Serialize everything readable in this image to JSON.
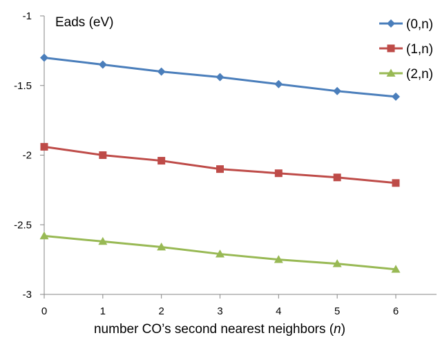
{
  "chart_data": {
    "type": "line",
    "ylabel": "Eads (eV)",
    "xlabel_main": "number CO’s second nearest neighbors (",
    "xlabel_var": "n",
    "xlabel_close": ")",
    "x": [
      0,
      1,
      2,
      3,
      4,
      5,
      6
    ],
    "x_tick_labels": [
      "0",
      "1",
      "2",
      "3",
      "4",
      "5",
      "6"
    ],
    "ylim": [
      -3,
      -1
    ],
    "y_ticks": [
      -1,
      -1.5,
      -2,
      -2.5,
      -3
    ],
    "y_tick_labels": [
      "-1",
      "-1.5",
      "-2",
      "-2.5",
      "-3"
    ],
    "grid": false,
    "legend_position": "top-right",
    "series": [
      {
        "name": "(0,n)",
        "color": "#4a7ebb",
        "marker": "diamond",
        "values": [
          -1.3,
          -1.35,
          -1.4,
          -1.44,
          -1.49,
          -1.54,
          -1.58
        ]
      },
      {
        "name": "(1,n)",
        "color": "#be4b48",
        "marker": "square",
        "values": [
          -1.94,
          -2.0,
          -2.04,
          -2.1,
          -2.13,
          -2.16,
          -2.2
        ]
      },
      {
        "name": "(2,n)",
        "color": "#98b954",
        "marker": "triangle",
        "values": [
          -2.58,
          -2.62,
          -2.66,
          -2.71,
          -2.75,
          -2.78,
          -2.82
        ]
      }
    ]
  }
}
